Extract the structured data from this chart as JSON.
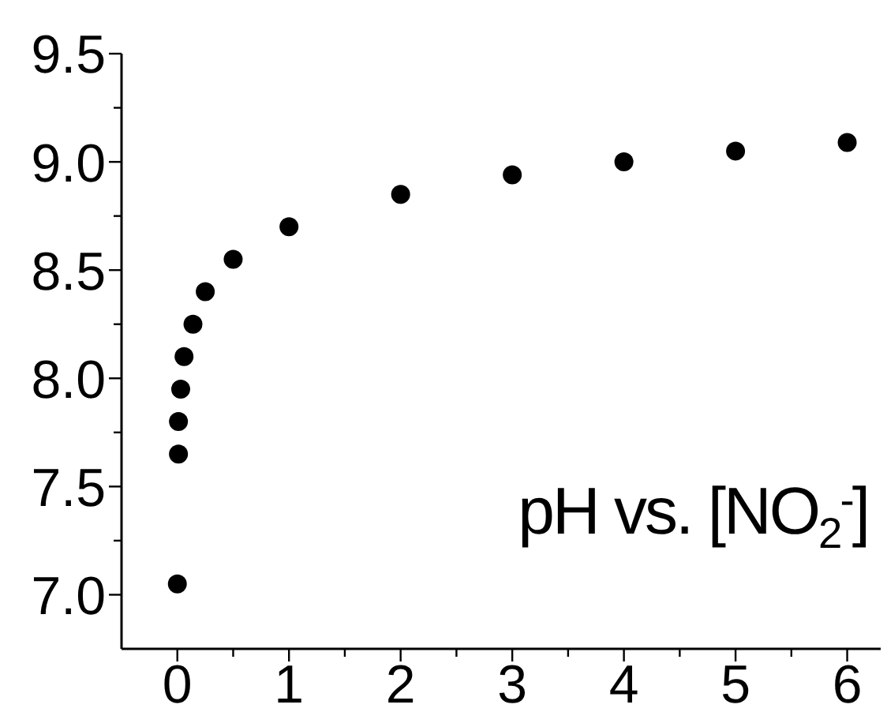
{
  "chart_data": {
    "type": "scatter",
    "annotations": [
      {
        "text": "pH vs. [NO$_{2}$$^{-}$]"
      }
    ],
    "x": [
      0,
      0.01,
      0.01,
      0.03,
      0.06,
      0.14,
      0.25,
      0.5,
      1,
      2,
      3,
      4,
      5,
      6
    ],
    "values": [
      7.05,
      7.65,
      7.8,
      7.95,
      8.1,
      8.25,
      8.4,
      8.55,
      8.7,
      8.85,
      8.94,
      9.0,
      9.05,
      9.09
    ],
    "color": "#000000",
    "marker": "circle",
    "xlim": [
      -0.5,
      6.3
    ],
    "xticks": [
      0,
      {
        "value": 0.5,
        "label": null
      },
      1,
      {
        "value": 1.5,
        "label": null
      },
      2,
      {
        "value": 2.5,
        "label": null
      },
      3,
      {
        "value": 3.5,
        "label": null
      },
      4,
      {
        "value": 4.5,
        "label": null
      },
      5,
      {
        "value": 5.5,
        "label": null
      },
      6
    ],
    "ylim": [
      6.75,
      9.5
    ],
    "yticks": [
      {
        "value": 7,
        "label": "7.0"
      },
      {
        "value": 7.25,
        "label": null
      },
      {
        "value": 7.5,
        "label": "7.5"
      },
      {
        "value": 7.75,
        "label": null
      },
      {
        "value": 8,
        "label": "8.0"
      },
      {
        "value": 8.25,
        "label": null
      },
      {
        "value": 8.5,
        "label": "8.5"
      },
      {
        "value": 8.75,
        "label": null
      },
      {
        "value": 9,
        "label": "9.0"
      },
      {
        "value": 9.25,
        "label": null
      },
      {
        "value": 9.5,
        "label": "9.5"
      }
    ]
  }
}
